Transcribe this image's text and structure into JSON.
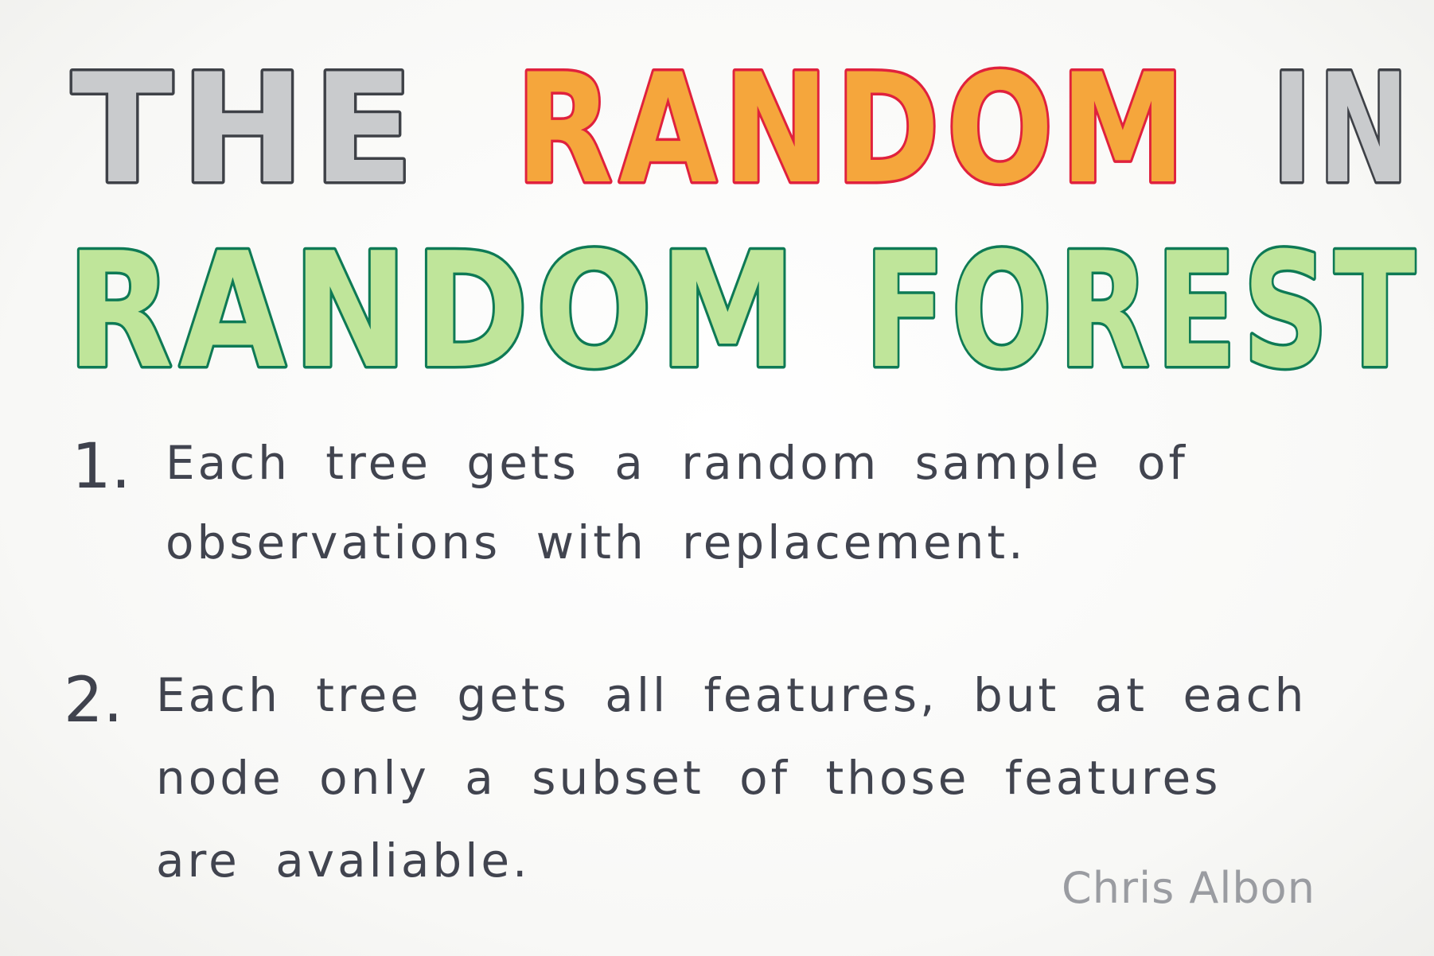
{
  "title": {
    "line1": {
      "words": [
        {
          "text": "THE",
          "fill": "#c9cbcd",
          "stroke": "#3e4147"
        },
        {
          "text": "RANDOM",
          "fill": "#f5a63c",
          "stroke": "#e0213d"
        },
        {
          "text": "IN",
          "fill": "#c9cbcd",
          "stroke": "#3e4147"
        }
      ]
    },
    "line2": {
      "words": [
        {
          "text": "RANDOM",
          "fill": "#bfe59a",
          "stroke": "#0e7a55"
        },
        {
          "text": "FOREST",
          "fill": "#bfe59a",
          "stroke": "#0e7a55"
        }
      ]
    }
  },
  "items": [
    {
      "number": "1.",
      "text": "Each tree gets a random sample of observations with replacement."
    },
    {
      "number": "2.",
      "text": "Each tree gets all features, but at each node only a subset of those features are avaliable."
    }
  ],
  "signature": "Chris Albon",
  "colors": {
    "ink": "#41444f",
    "signature": "#9a9ca1",
    "paper": "#f8f8f6"
  }
}
